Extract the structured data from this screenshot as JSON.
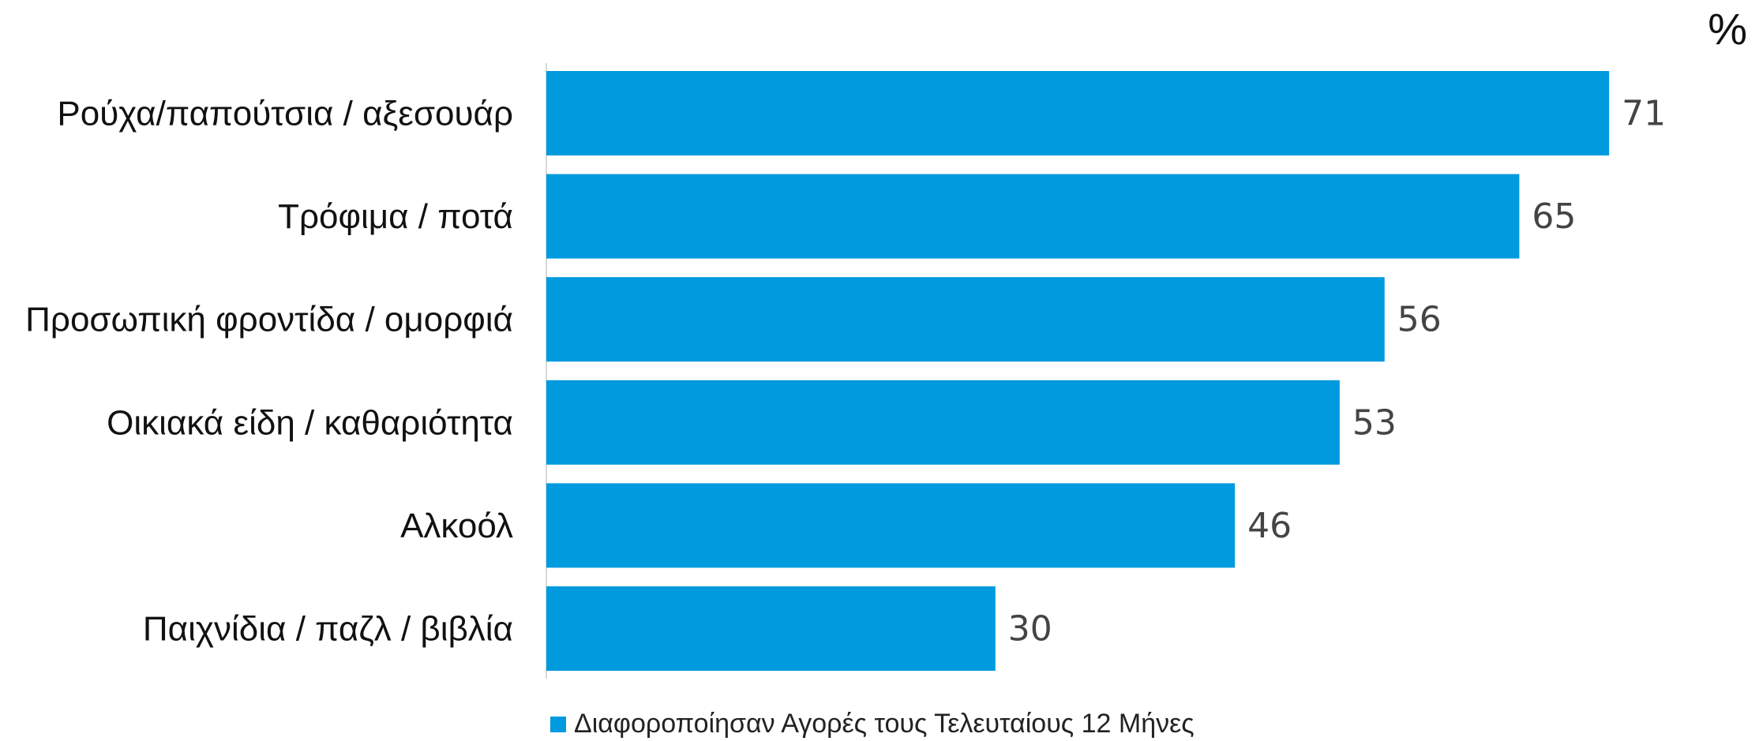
{
  "chart_data": {
    "type": "bar",
    "orientation": "horizontal",
    "unit": "%",
    "categories": [
      "Ρούχα/παπούτσια / αξεσουάρ",
      "Τρόφιμα / ποτά",
      "Προσωπική φροντίδα / ομορφιά",
      "Οικιακά είδη / καθαριότητα",
      "Αλκοόλ",
      "Παιχνίδια / παζλ / βιβλία"
    ],
    "series": [
      {
        "name": "Διαφοροποίησαν Αγορές τους Τελευταίους 12 Μήνες",
        "values": [
          71,
          65,
          56,
          53,
          46,
          30
        ],
        "color": "#009ADE"
      }
    ],
    "data_labels": [
      "71",
      "65",
      "56",
      "53",
      "46",
      "30"
    ],
    "xlim": [
      0,
      75
    ],
    "grid": false,
    "legend_position": "bottom"
  }
}
